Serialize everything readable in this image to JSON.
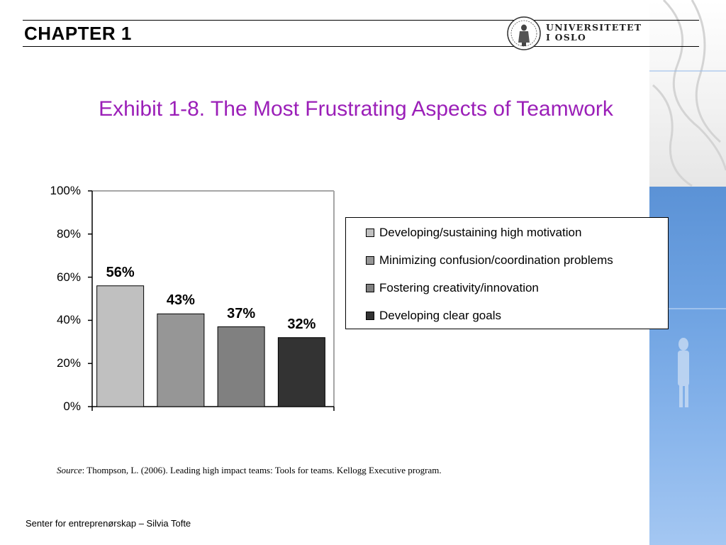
{
  "header": {
    "chapter": "CHAPTER 1",
    "university_line1": "UNIVERSITETET",
    "university_line2": "I OSLO"
  },
  "footer": {
    "source_label": "Source",
    "source_text": ": Thompson, L. (2006). Leading high impact teams: Tools for teams. Kellogg Executive program.",
    "credit": "Senter for entreprenørskap – Silvia Tofte"
  },
  "colors": {
    "title": "#9b1fb8",
    "bars": [
      "#c0c0c0",
      "#969696",
      "#808080",
      "#333333"
    ]
  },
  "chart_data": {
    "type": "bar",
    "title": "Exhibit 1-8.  The Most Frustrating Aspects of Teamwork",
    "categories": [
      "Developing/sustaining high motivation",
      "Minimizing confusion/coordination problems",
      "Fostering creativity/innovation",
      "Developing clear goals"
    ],
    "values": [
      56,
      43,
      37,
      32
    ],
    "data_labels": [
      "56%",
      "43%",
      "37%",
      "32%"
    ],
    "ylim": [
      0,
      100
    ],
    "yticks": [
      0,
      20,
      40,
      60,
      80,
      100
    ],
    "ytick_labels": [
      "0%",
      "20%",
      "40%",
      "60%",
      "80%",
      "100%"
    ],
    "grid": false,
    "legend_position": "right"
  }
}
